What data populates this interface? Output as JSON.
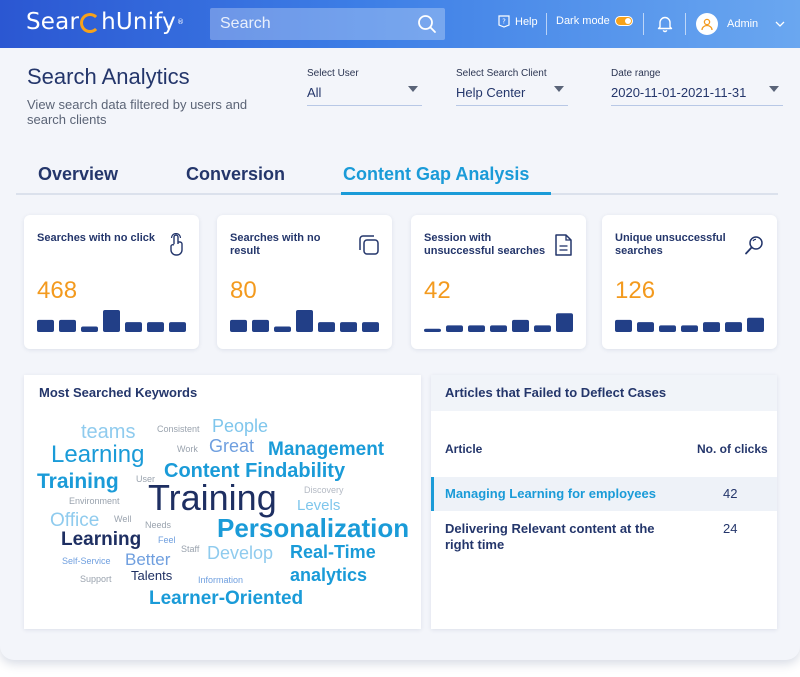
{
  "header": {
    "logo_text_before": "Sear",
    "logo_text_after": "hUnify",
    "logo_mark": "®",
    "search_placeholder": "Search",
    "help_label": "Help",
    "dark_mode_label": "Dark mode",
    "user_label": "Admin",
    "icons": [
      "search-icon",
      "help-icon",
      "toggle",
      "bell-icon",
      "user-icon",
      "chevron-down-icon"
    ]
  },
  "page": {
    "title": "Search Analytics",
    "subtitle": "View search data filtered by users and search clients"
  },
  "filters": {
    "user": {
      "label": "Select User",
      "value": "All"
    },
    "client": {
      "label": "Select Search Client",
      "value": "Help Center"
    },
    "date": {
      "label": "Date range",
      "value": "2020-11-01-2021-11-31"
    }
  },
  "tabs": [
    {
      "label": "Overview",
      "active": false
    },
    {
      "label": "Conversion",
      "active": false
    },
    {
      "label": "Content Gap Analysis",
      "active": true
    }
  ],
  "cards": [
    {
      "title": "Searches with no click",
      "value": "468",
      "icon": "tap-icon",
      "bars": [
        0.55,
        0.55,
        0.25,
        1.0,
        0.45,
        0.45,
        0.45
      ]
    },
    {
      "title": "Searches with no result",
      "value": "80",
      "icon": "copy-icon",
      "bars": [
        0.55,
        0.55,
        0.25,
        1.0,
        0.45,
        0.45,
        0.45
      ]
    },
    {
      "title": "Session with unsuccessful searches",
      "value": "42",
      "icon": "document-icon",
      "bars": [
        0.15,
        0.3,
        0.3,
        0.3,
        0.55,
        0.3,
        0.85
      ]
    },
    {
      "title": "Unique unsuccessful searches",
      "value": "126",
      "icon": "magnifier-icon",
      "bars": [
        0.55,
        0.45,
        0.3,
        0.3,
        0.45,
        0.45,
        0.65
      ]
    }
  ],
  "keywords_panel": {
    "title": "Most Searched Keywords",
    "words": [
      {
        "text": "teams",
        "color": "#8fcbee"
      },
      {
        "text": "Consistent",
        "color": "#9aa3ae"
      },
      {
        "text": "People",
        "color": "#7fc6ec"
      },
      {
        "text": "Learning",
        "color": "#1a9bd8"
      },
      {
        "text": "Work",
        "color": "#9aa3ae"
      },
      {
        "text": "Great",
        "color": "#6f9fdf"
      },
      {
        "text": "Management",
        "color": "#1a9bd8"
      },
      {
        "text": "Training",
        "color": "#1a9bd8"
      },
      {
        "text": "User",
        "color": "#9aa3ae"
      },
      {
        "text": "Content Findability",
        "color": "#1a9bd8"
      },
      {
        "text": "Environment",
        "color": "#9aa3ae"
      },
      {
        "text": "Training",
        "color": "#1e2f62"
      },
      {
        "text": "Discovery",
        "color": "#b4bac4"
      },
      {
        "text": "Office",
        "color": "#8fcbee"
      },
      {
        "text": "Well",
        "color": "#9aa3ae"
      },
      {
        "text": "Levels",
        "color": "#7fc6ec"
      },
      {
        "text": "Learning",
        "color": "#1e2f62"
      },
      {
        "text": "Needs",
        "color": "#9aa3ae"
      },
      {
        "text": "Personalization",
        "color": "#1a9bd8"
      },
      {
        "text": "Feel",
        "color": "#6f9fdf"
      },
      {
        "text": "Staff",
        "color": "#9aa3ae"
      },
      {
        "text": "Develop",
        "color": "#8fcbee"
      },
      {
        "text": "Real-Time",
        "color": "#1a9bd8"
      },
      {
        "text": "Self-Service",
        "color": "#6f9fdf"
      },
      {
        "text": "Better",
        "color": "#6f9fdf"
      },
      {
        "text": "Support",
        "color": "#9aa3ae"
      },
      {
        "text": "Talents",
        "color": "#1e2f62"
      },
      {
        "text": "Information",
        "color": "#6f9fdf"
      },
      {
        "text": "analytics",
        "color": "#1a9bd8"
      },
      {
        "text": "Learner-Oriented",
        "color": "#1a9bd8"
      }
    ]
  },
  "articles_panel": {
    "title": "Articles that Failed to Deflect Cases",
    "col_article": "Article",
    "col_clicks": "No. of clicks",
    "rows": [
      {
        "name": "Managing Learning for employees",
        "clicks": "42",
        "highlight": true
      },
      {
        "name": "Delivering Relevant content at the right time",
        "clicks": "24",
        "highlight": false
      }
    ]
  },
  "colors": {
    "accent": "#1a9bd8",
    "navy": "#24366b",
    "orange": "#f39a1e",
    "bar": "#223f87"
  }
}
